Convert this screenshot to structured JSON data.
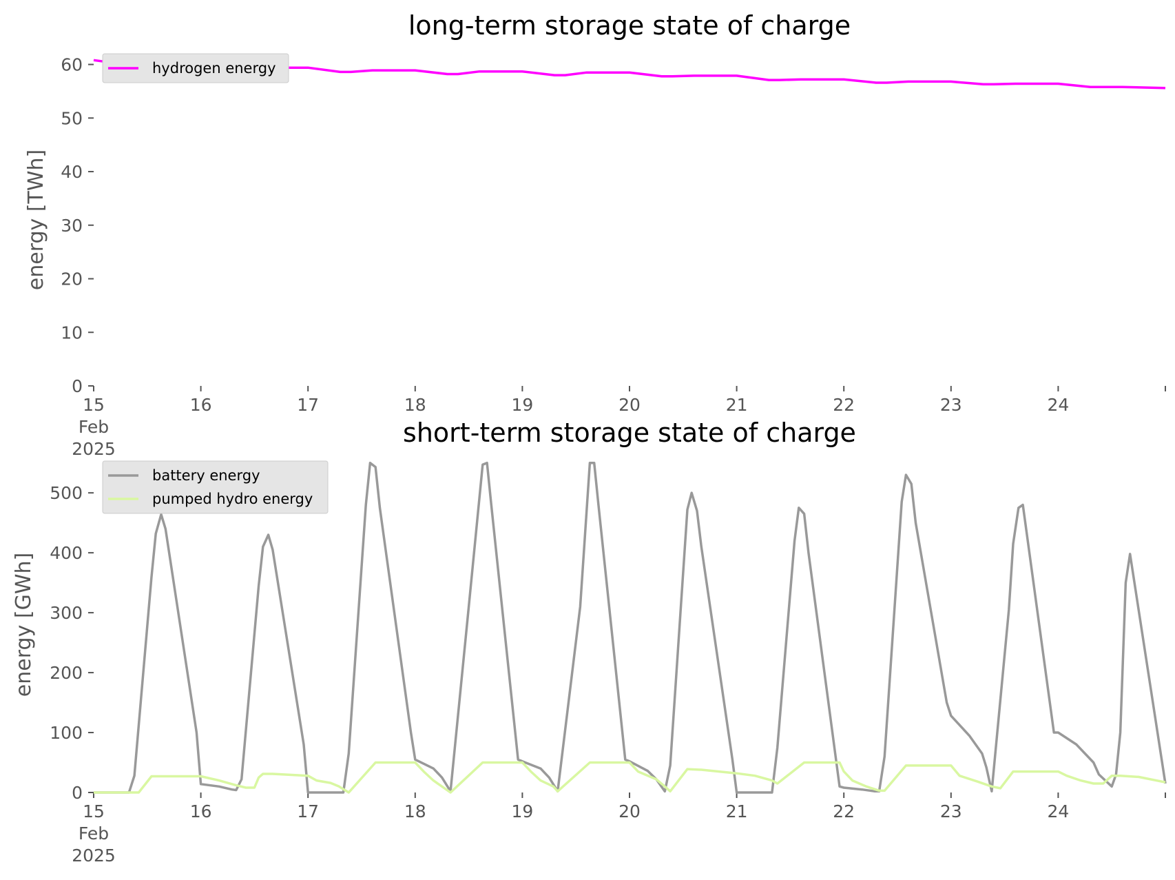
{
  "chart_data": [
    {
      "type": "line",
      "title": "long-term storage state of charge",
      "xlabel": "",
      "ylabel": "energy [TWh]",
      "x_unit": "days since 15 Feb 2025",
      "xlim": [
        0,
        10
      ],
      "ylim": [
        0,
        62
      ],
      "x_ticks": [
        {
          "value": 0,
          "lines": [
            "15",
            "Feb",
            "2025"
          ]
        },
        {
          "value": 1,
          "lines": [
            "16"
          ]
        },
        {
          "value": 2,
          "lines": [
            "17"
          ]
        },
        {
          "value": 3,
          "lines": [
            "18"
          ]
        },
        {
          "value": 4,
          "lines": [
            "19"
          ]
        },
        {
          "value": 5,
          "lines": [
            "20"
          ]
        },
        {
          "value": 6,
          "lines": [
            "21"
          ]
        },
        {
          "value": 7,
          "lines": [
            "22"
          ]
        },
        {
          "value": 8,
          "lines": [
            "23"
          ]
        },
        {
          "value": 9,
          "lines": [
            "24"
          ]
        }
      ],
      "y_ticks": [
        0,
        10,
        20,
        30,
        40,
        50,
        60
      ],
      "grid": false,
      "legend_placement": "upper-left",
      "series": [
        {
          "name": "hydrogen energy",
          "color": "#ff00ff",
          "x": [
            0,
            0.3,
            0.6,
            1.0,
            1.3,
            1.6,
            2.0,
            2.3,
            2.4,
            2.6,
            3.0,
            3.3,
            3.4,
            3.6,
            4.0,
            4.3,
            4.4,
            4.6,
            5.0,
            5.3,
            5.4,
            5.6,
            6.0,
            6.3,
            6.4,
            6.6,
            7.0,
            7.3,
            7.4,
            7.6,
            8.0,
            8.3,
            8.4,
            8.6,
            9.0,
            9.3,
            9.4,
            9.6,
            10.0
          ],
          "y": [
            60.8,
            60.0,
            59.6,
            59.6,
            59.1,
            59.4,
            59.4,
            58.6,
            58.6,
            58.9,
            58.9,
            58.2,
            58.2,
            58.7,
            58.7,
            58.0,
            58.0,
            58.5,
            58.5,
            57.8,
            57.8,
            57.9,
            57.9,
            57.1,
            57.1,
            57.2,
            57.2,
            56.6,
            56.6,
            56.8,
            56.8,
            56.3,
            56.3,
            56.4,
            56.4,
            55.8,
            55.8,
            55.8,
            55.6
          ]
        }
      ]
    },
    {
      "type": "line",
      "title": "short-term storage state of charge",
      "xlabel": "",
      "ylabel": "energy [GWh]",
      "x_unit": "days since 15 Feb 2025",
      "xlim": [
        0,
        10
      ],
      "ylim": [
        0,
        560
      ],
      "x_ticks": [
        {
          "value": 0,
          "lines": [
            "15",
            "Feb",
            "2025"
          ]
        },
        {
          "value": 1,
          "lines": [
            "16"
          ]
        },
        {
          "value": 2,
          "lines": [
            "17"
          ]
        },
        {
          "value": 3,
          "lines": [
            "18"
          ]
        },
        {
          "value": 4,
          "lines": [
            "19"
          ]
        },
        {
          "value": 5,
          "lines": [
            "20"
          ]
        },
        {
          "value": 6,
          "lines": [
            "21"
          ]
        },
        {
          "value": 7,
          "lines": [
            "22"
          ]
        },
        {
          "value": 8,
          "lines": [
            "23"
          ]
        },
        {
          "value": 9,
          "lines": [
            "24"
          ]
        }
      ],
      "y_ticks": [
        0,
        100,
        200,
        300,
        400,
        500
      ],
      "grid": false,
      "legend_placement": "upper-left",
      "series": [
        {
          "name": "battery energy",
          "color": "#999999",
          "x": [
            0,
            0.33,
            0.38,
            0.54,
            0.58,
            0.63,
            0.67,
            0.96,
            1.0,
            1.17,
            1.29,
            1.33,
            1.38,
            1.54,
            1.58,
            1.63,
            1.67,
            1.96,
            2.0,
            2.17,
            2.33,
            2.38,
            2.54,
            2.58,
            2.63,
            2.67,
            2.96,
            3.0,
            3.17,
            3.25,
            3.33,
            3.5,
            3.63,
            3.67,
            3.71,
            3.96,
            4.0,
            4.17,
            4.25,
            4.33,
            4.54,
            4.63,
            4.67,
            4.71,
            4.96,
            5.0,
            5.17,
            5.25,
            5.33,
            5.38,
            5.54,
            5.58,
            5.63,
            5.67,
            5.96,
            6.0,
            6.17,
            6.33,
            6.38,
            6.54,
            6.58,
            6.63,
            6.67,
            6.96,
            7.0,
            7.17,
            7.29,
            7.33,
            7.38,
            7.54,
            7.58,
            7.63,
            7.67,
            7.96,
            8.0,
            8.17,
            8.29,
            8.33,
            8.38,
            8.54,
            8.58,
            8.63,
            8.67,
            8.96,
            9.0,
            9.17,
            9.25,
            9.33,
            9.38,
            9.5,
            9.54,
            9.58,
            9.63,
            9.67,
            10.0
          ],
          "y": [
            0,
            0,
            28,
            360,
            432,
            464,
            440,
            100,
            14,
            10,
            5,
            4,
            22,
            345,
            410,
            430,
            405,
            80,
            0,
            0,
            0,
            65,
            480,
            550,
            543,
            475,
            100,
            55,
            40,
            25,
            2,
            310,
            547,
            550,
            480,
            55,
            52,
            40,
            25,
            2,
            310,
            550,
            550,
            480,
            55,
            52,
            36,
            22,
            2,
            45,
            472,
            500,
            470,
            410,
            55,
            0,
            0,
            0,
            75,
            420,
            475,
            465,
            400,
            10,
            8,
            5,
            2,
            2,
            60,
            485,
            530,
            515,
            450,
            150,
            128,
            95,
            65,
            42,
            2,
            305,
            415,
            475,
            480,
            100,
            100,
            80,
            65,
            50,
            30,
            10,
            30,
            100,
            350,
            398,
            15
          ]
        },
        {
          "name": "pumped hydro energy",
          "color": "#d9f7a1",
          "x": [
            0,
            0.42,
            0.54,
            1.0,
            1.17,
            1.33,
            1.42,
            1.5,
            1.54,
            1.58,
            1.67,
            2.0,
            2.08,
            2.21,
            2.29,
            2.38,
            2.63,
            3.0,
            3.08,
            3.17,
            3.33,
            3.63,
            4.0,
            4.08,
            4.17,
            4.29,
            4.33,
            4.63,
            5.0,
            5.08,
            5.25,
            5.33,
            5.38,
            5.54,
            5.67,
            6.0,
            6.17,
            6.33,
            6.38,
            6.63,
            6.96,
            7.0,
            7.08,
            7.21,
            7.33,
            7.38,
            7.58,
            8.0,
            8.08,
            8.25,
            8.38,
            8.46,
            8.58,
            9.0,
            9.08,
            9.21,
            9.33,
            9.42,
            9.5,
            9.58,
            9.75,
            10.0
          ],
          "y": [
            0,
            0,
            27,
            27,
            20,
            12,
            8,
            8,
            25,
            31,
            31,
            28,
            20,
            16,
            10,
            0,
            50,
            50,
            35,
            20,
            0,
            50,
            50,
            35,
            20,
            10,
            2,
            50,
            50,
            35,
            22,
            10,
            2,
            39,
            38,
            32,
            28,
            20,
            15,
            50,
            50,
            35,
            20,
            10,
            3,
            3,
            45,
            45,
            28,
            18,
            10,
            7,
            35,
            35,
            28,
            20,
            15,
            15,
            28,
            28,
            26,
            17
          ]
        }
      ]
    }
  ]
}
